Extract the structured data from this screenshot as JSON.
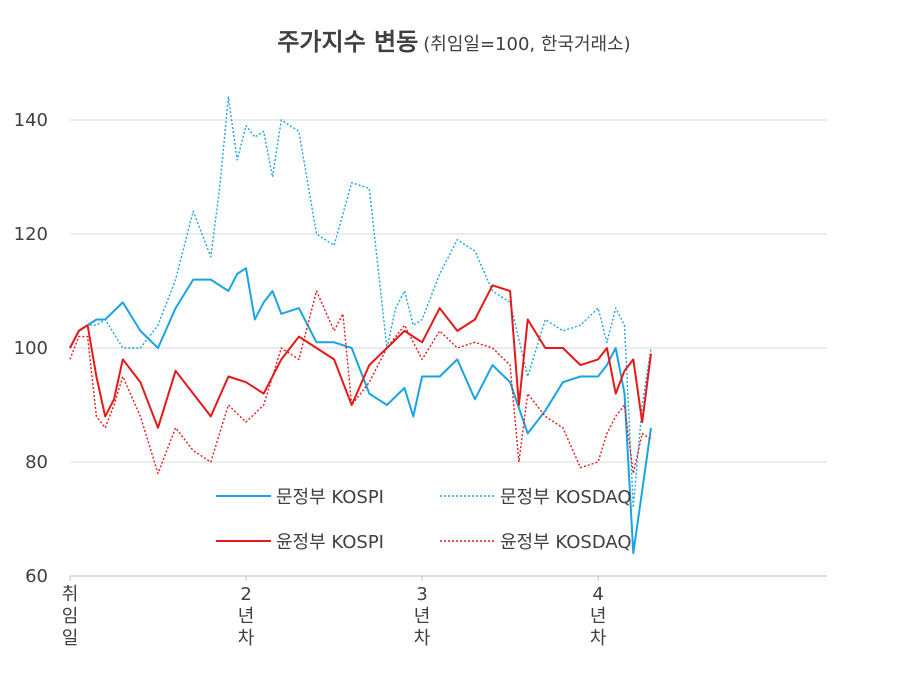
{
  "chart_data": {
    "type": "line",
    "title": "주가지수 변동",
    "subtitle": "(취임일=100, 한국거래소)",
    "xlabel": "",
    "ylabel": "",
    "ylim": [
      60,
      145
    ],
    "yticks": [
      60,
      80,
      100,
      120,
      140
    ],
    "xlim": [
      0,
      4.3
    ],
    "xticks": [
      {
        "value": 0,
        "label": "취임일"
      },
      {
        "value": 1,
        "label": "2년차"
      },
      {
        "value": 2,
        "label": "3년차"
      },
      {
        "value": 3,
        "label": "4년차"
      }
    ],
    "grid": true,
    "legend_position": "bottom-center inside",
    "series": [
      {
        "name": "문정부 KOSPI",
        "color": "#1AA4E2",
        "style": "solid",
        "x": [
          0,
          0.05,
          0.1,
          0.15,
          0.2,
          0.3,
          0.4,
          0.5,
          0.6,
          0.7,
          0.8,
          0.9,
          0.95,
          1.0,
          1.05,
          1.1,
          1.15,
          1.2,
          1.3,
          1.4,
          1.5,
          1.6,
          1.7,
          1.8,
          1.9,
          1.95,
          2.0,
          2.1,
          2.2,
          2.3,
          2.4,
          2.5,
          2.6,
          2.7,
          2.8,
          2.9,
          3.0,
          3.05,
          3.1,
          3.15,
          3.2,
          3.25,
          3.3
        ],
        "y": [
          100,
          103,
          104,
          105,
          105,
          108,
          103,
          100,
          107,
          112,
          112,
          110,
          113,
          114,
          105,
          108,
          110,
          106,
          107,
          101,
          101,
          100,
          92,
          90,
          93,
          88,
          95,
          95,
          98,
          91,
          97,
          94,
          85,
          89,
          94,
          95,
          95,
          97,
          100,
          92,
          64,
          75,
          86
        ]
      },
      {
        "name": "문정부 KOSDAQ",
        "color": "#1AA4E2",
        "style": "dotted",
        "x": [
          0,
          0.05,
          0.1,
          0.15,
          0.2,
          0.3,
          0.4,
          0.5,
          0.6,
          0.7,
          0.8,
          0.85,
          0.9,
          0.95,
          1.0,
          1.05,
          1.1,
          1.15,
          1.2,
          1.3,
          1.4,
          1.5,
          1.6,
          1.7,
          1.8,
          1.85,
          1.9,
          1.95,
          2.0,
          2.1,
          2.2,
          2.3,
          2.4,
          2.5,
          2.6,
          2.7,
          2.8,
          2.9,
          3.0,
          3.05,
          3.1,
          3.15,
          3.2,
          3.25,
          3.3
        ],
        "y": [
          100,
          103,
          104,
          104,
          105,
          100,
          100,
          104,
          112,
          124,
          116,
          128,
          144,
          133,
          139,
          137,
          138,
          130,
          140,
          138,
          120,
          118,
          129,
          128,
          100,
          107,
          110,
          104,
          105,
          113,
          119,
          117,
          110,
          108,
          95,
          105,
          103,
          104,
          107,
          101,
          107,
          104,
          72,
          90,
          100
        ]
      },
      {
        "name": "윤정부 KOSPI",
        "color": "#E51919",
        "style": "solid",
        "x": [
          0,
          0.05,
          0.1,
          0.15,
          0.2,
          0.25,
          0.3,
          0.4,
          0.5,
          0.6,
          0.7,
          0.8,
          0.9,
          1.0,
          1.1,
          1.2,
          1.3,
          1.4,
          1.5,
          1.6,
          1.7,
          1.8,
          1.9,
          2.0,
          2.1,
          2.2,
          2.3,
          2.4,
          2.5,
          2.55,
          2.6,
          2.7,
          2.8,
          2.9,
          3.0,
          3.05,
          3.1,
          3.15,
          3.2,
          3.25,
          3.3
        ],
        "y": [
          100,
          103,
          104,
          95,
          88,
          91,
          98,
          94,
          86,
          96,
          92,
          88,
          95,
          94,
          92,
          98,
          102,
          100,
          98,
          90,
          97,
          100,
          103,
          101,
          107,
          103,
          105,
          111,
          110,
          90,
          105,
          100,
          100,
          97,
          98,
          100,
          92,
          96,
          98,
          87,
          99
        ]
      },
      {
        "name": "윤정부 KOSDAQ",
        "color": "#E51919",
        "style": "dotted",
        "x": [
          0,
          0.05,
          0.1,
          0.15,
          0.2,
          0.25,
          0.3,
          0.4,
          0.5,
          0.6,
          0.7,
          0.8,
          0.9,
          1.0,
          1.1,
          1.2,
          1.3,
          1.4,
          1.5,
          1.55,
          1.6,
          1.7,
          1.8,
          1.9,
          2.0,
          2.1,
          2.2,
          2.3,
          2.4,
          2.5,
          2.55,
          2.6,
          2.7,
          2.8,
          2.9,
          3.0,
          3.05,
          3.1,
          3.15,
          3.2,
          3.25,
          3.3
        ],
        "y": [
          98,
          102,
          102,
          88,
          86,
          90,
          95,
          88,
          78,
          86,
          82,
          80,
          90,
          87,
          90,
          100,
          98,
          110,
          103,
          106,
          90,
          94,
          100,
          104,
          98,
          103,
          100,
          101,
          100,
          97,
          80,
          92,
          88,
          86,
          79,
          80,
          85,
          88,
          90,
          78,
          85,
          84
        ]
      }
    ]
  },
  "legend": [
    {
      "label": "문정부 KOSPI"
    },
    {
      "label": "문정부 KOSDAQ"
    },
    {
      "label": "윤정부 KOSPI"
    },
    {
      "label": "윤정부 KOSDAQ"
    }
  ]
}
